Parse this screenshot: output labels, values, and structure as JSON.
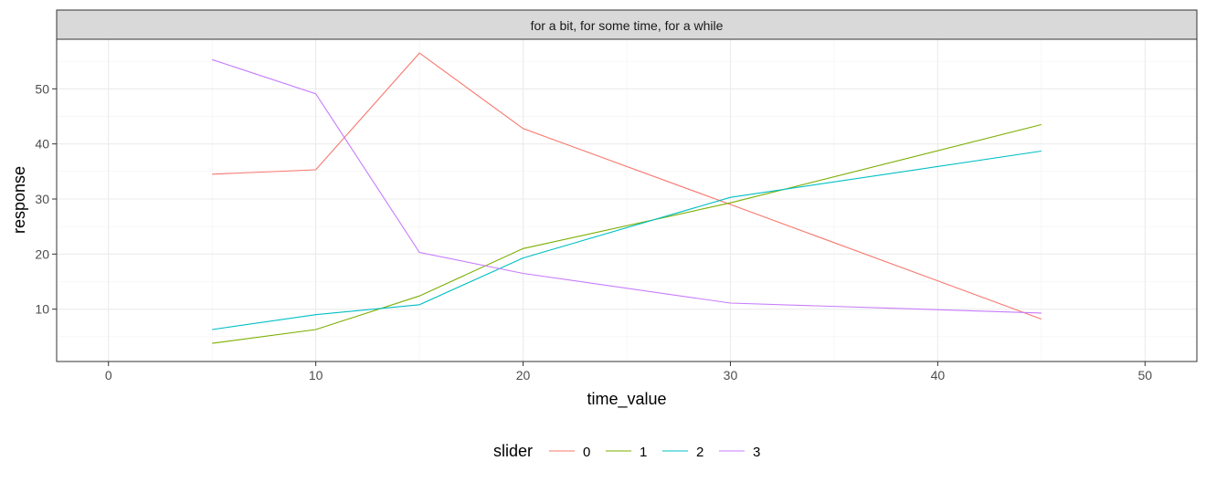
{
  "chart_data": {
    "type": "line",
    "facet_label": "for a bit, for some time, for a while",
    "xlabel": "time_value",
    "ylabel": "response",
    "xlim": [
      -2.5,
      52.5
    ],
    "ylim": [
      0.5,
      59.0
    ],
    "x_ticks": [
      0,
      10,
      20,
      30,
      40,
      50
    ],
    "y_ticks": [
      10,
      20,
      30,
      40,
      50
    ],
    "grid": true,
    "legend": {
      "title": "slider",
      "position": "bottom"
    },
    "series": [
      {
        "name": "0",
        "color": "#F8766D",
        "x": [
          5,
          10,
          15,
          20,
          30,
          45
        ],
        "y": [
          34.5,
          35.3,
          56.5,
          42.8,
          29.0,
          8.2
        ]
      },
      {
        "name": "1",
        "color": "#7CAE00",
        "x": [
          5,
          10,
          15,
          20,
          30,
          45
        ],
        "y": [
          3.8,
          6.3,
          12.4,
          21.0,
          29.3,
          43.5
        ]
      },
      {
        "name": "2",
        "color": "#00BFC4",
        "x": [
          5,
          10,
          15,
          20,
          30,
          45
        ],
        "y": [
          6.3,
          9.0,
          10.8,
          19.3,
          30.3,
          38.7
        ]
      },
      {
        "name": "3",
        "color": "#C77CFF",
        "x": [
          5,
          10,
          15,
          20,
          30,
          45
        ],
        "y": [
          55.3,
          49.1,
          20.3,
          16.5,
          11.1,
          9.3
        ]
      }
    ]
  }
}
